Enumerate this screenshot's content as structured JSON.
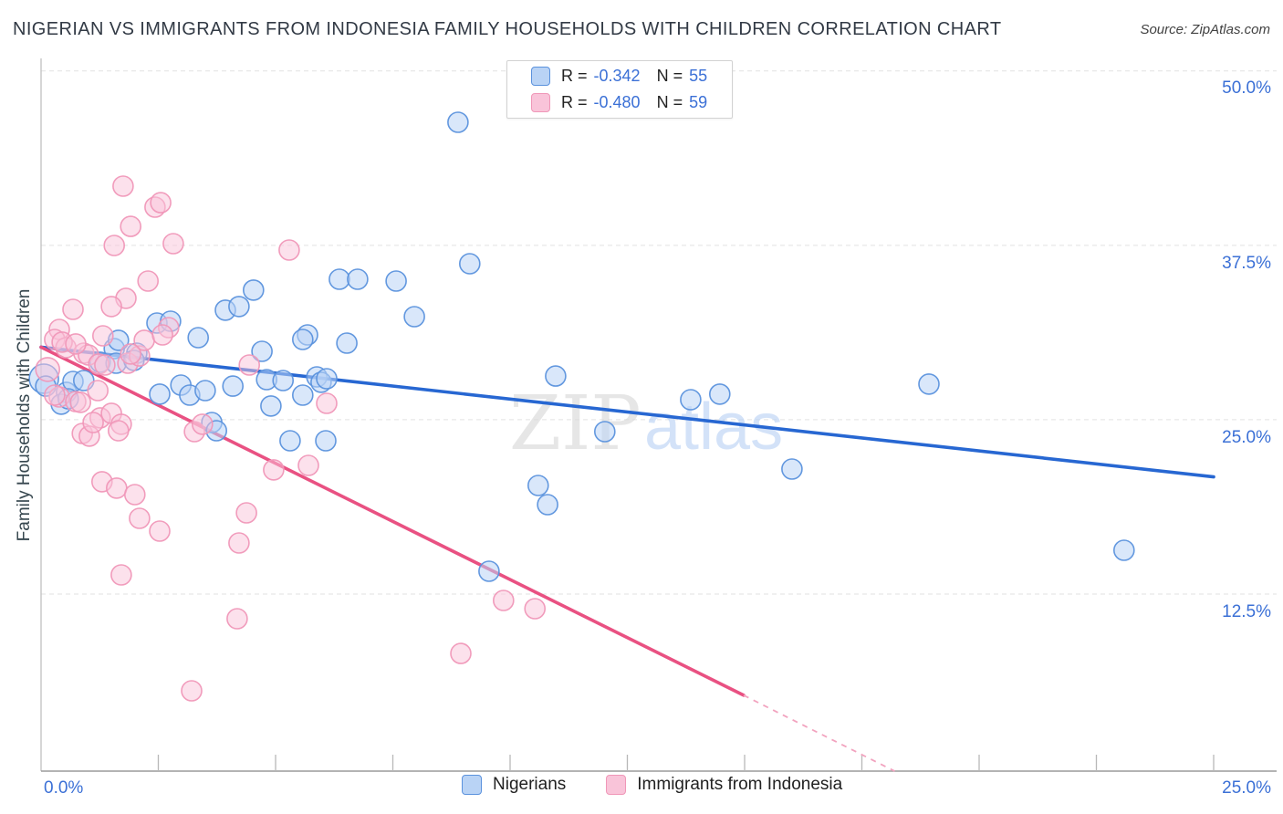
{
  "header": {
    "title": "NIGERIAN VS IMMIGRANTS FROM INDONESIA FAMILY HOUSEHOLDS WITH CHILDREN CORRELATION CHART",
    "source": "Source: ZipAtlas.com"
  },
  "legend_box": {
    "rows": [
      {
        "r_label": "R =",
        "r_value": "-0.342",
        "n_label": "N =",
        "n_value": "55"
      },
      {
        "r_label": "R =",
        "r_value": "-0.480",
        "n_label": "N =",
        "n_value": "59"
      }
    ]
  },
  "y_axis": {
    "title": "Family Households with Children",
    "tick_labels": [
      "50.0%",
      "37.5%",
      "25.0%",
      "12.5%"
    ]
  },
  "x_axis": {
    "min_label": "0.0%",
    "max_label": "25.0%"
  },
  "bottom_legend": {
    "items": [
      {
        "label": "Nigerians"
      },
      {
        "label": "Immigrants from Indonesia"
      }
    ]
  },
  "watermark": {
    "zip": "ZIP",
    "atlas": "atlas"
  },
  "colors": {
    "accent_text_blue": "#3b70d6",
    "blue_point_fill": "#b9d3f5",
    "blue_point_stroke": "#5b92dd",
    "pink_point_fill": "#f9c4d9",
    "pink_point_stroke": "#f097b8",
    "blue_trend": "#2767d2",
    "pink_trend": "#e95182",
    "pink_trend_dashed": "#f2a3bf",
    "gridline": "#e2e2e2",
    "x_axis_line": "#9b9b9b",
    "y_axis_line": "#c4c4c4"
  },
  "chart_data": {
    "type": "scatter",
    "title": "Nigerian vs Immigrants from Indonesia Family Households with Children",
    "xlabel": "",
    "ylabel": "Family Households with Children",
    "xlim": [
      0,
      25
    ],
    "ylim": [
      0,
      50
    ],
    "y_gridlines": [
      50,
      37.5,
      25,
      12.5
    ],
    "x_tick_step": 2.5,
    "grid": "dashed-horizontal",
    "legend_position": "bottom-center",
    "series": [
      {
        "name": "Nigerians",
        "R": -0.342,
        "N": 55,
        "trend": {
          "x0": 0,
          "y0": 30.2,
          "x1": 25,
          "y1": 20.9
        },
        "points": [
          [
            8.89,
            46.32
          ],
          [
            9.14,
            36.18
          ],
          [
            6.36,
            35.07
          ],
          [
            6.75,
            35.07
          ],
          [
            7.57,
            34.94
          ],
          [
            4.53,
            34.29
          ],
          [
            7.96,
            32.39
          ],
          [
            3.93,
            32.85
          ],
          [
            4.22,
            33.11
          ],
          [
            2.47,
            31.93
          ],
          [
            2.76,
            32.06
          ],
          [
            3.35,
            30.88
          ],
          [
            5.68,
            31.08
          ],
          [
            6.52,
            30.49
          ],
          [
            5.58,
            30.75
          ],
          [
            5.88,
            28.07
          ],
          [
            5.97,
            27.68
          ],
          [
            1.56,
            30.1
          ],
          [
            1.65,
            30.69
          ],
          [
            2.04,
            29.77
          ],
          [
            0.06,
            27.94,
            16
          ],
          [
            0.1,
            27.41
          ],
          [
            0.54,
            26.96
          ],
          [
            0.68,
            27.74
          ],
          [
            0.91,
            27.81
          ],
          [
            0.43,
            26.11
          ],
          [
            0.58,
            26.5
          ],
          [
            1.26,
            29.12
          ],
          [
            1.6,
            29.05
          ],
          [
            1.98,
            29.25
          ],
          [
            2.53,
            26.83
          ],
          [
            2.98,
            27.48
          ],
          [
            3.17,
            26.76
          ],
          [
            3.5,
            27.09
          ],
          [
            4.09,
            27.41
          ],
          [
            4.71,
            29.9
          ],
          [
            4.81,
            27.87
          ],
          [
            5.16,
            27.81
          ],
          [
            4.9,
            25.98
          ],
          [
            5.58,
            26.76
          ],
          [
            6.09,
            27.94
          ],
          [
            3.64,
            24.8
          ],
          [
            5.31,
            23.49
          ],
          [
            6.07,
            23.49
          ],
          [
            3.74,
            24.21
          ],
          [
            10.6,
            20.28
          ],
          [
            10.8,
            18.91
          ],
          [
            9.55,
            14.13
          ],
          [
            10.97,
            28.13
          ],
          [
            12.02,
            24.14
          ],
          [
            13.85,
            26.43
          ],
          [
            14.47,
            26.83
          ],
          [
            16.01,
            21.46
          ],
          [
            18.93,
            27.55
          ],
          [
            23.09,
            15.64
          ]
        ]
      },
      {
        "name": "Immigrants from Indonesia",
        "R": -0.48,
        "N": 59,
        "trend": {
          "x0": 0,
          "y0": 30.2,
          "x1": 14.98,
          "y1": 5.24,
          "dash_x1": 18.2,
          "dash_y1": -0.2
        },
        "points": [
          [
            1.75,
            41.74
          ],
          [
            2.43,
            40.24
          ],
          [
            2.55,
            40.56
          ],
          [
            1.91,
            38.86
          ],
          [
            1.56,
            37.49
          ],
          [
            2.82,
            37.62
          ],
          [
            5.29,
            37.16
          ],
          [
            2.28,
            34.94
          ],
          [
            1.81,
            33.7
          ],
          [
            1.5,
            33.11
          ],
          [
            0.68,
            32.91
          ],
          [
            2.72,
            31.6
          ],
          [
            0.39,
            31.47
          ],
          [
            0.29,
            30.75
          ],
          [
            0.53,
            30.16
          ],
          [
            1.32,
            31.01
          ],
          [
            0.91,
            29.77
          ],
          [
            1.01,
            29.64
          ],
          [
            1.23,
            28.99
          ],
          [
            1.85,
            29.05
          ],
          [
            2.1,
            29.57
          ],
          [
            0.45,
            30.56
          ],
          [
            0.74,
            30.43
          ],
          [
            2.2,
            30.69
          ],
          [
            2.59,
            31.08
          ],
          [
            1.91,
            29.71
          ],
          [
            1.36,
            28.92
          ],
          [
            0.14,
            28.6,
            13
          ],
          [
            0.39,
            26.63
          ],
          [
            0.74,
            26.3
          ],
          [
            1.21,
            27.09
          ],
          [
            0.84,
            26.24
          ],
          [
            0.29,
            26.76
          ],
          [
            1.26,
            25.13
          ],
          [
            1.5,
            25.46
          ],
          [
            1.71,
            24.67
          ],
          [
            0.88,
            24.01
          ],
          [
            1.03,
            23.82
          ],
          [
            1.11,
            24.8
          ],
          [
            1.65,
            24.21
          ],
          [
            3.27,
            24.14
          ],
          [
            3.44,
            24.67
          ],
          [
            6.09,
            26.17
          ],
          [
            4.44,
            28.92
          ],
          [
            4.96,
            21.4
          ],
          [
            5.7,
            21.72
          ],
          [
            1.3,
            20.55
          ],
          [
            1.61,
            20.09
          ],
          [
            2.0,
            19.63
          ],
          [
            2.1,
            17.93
          ],
          [
            2.53,
            17.01
          ],
          [
            4.38,
            18.32
          ],
          [
            4.22,
            16.16
          ],
          [
            1.71,
            13.87
          ],
          [
            4.18,
            10.73
          ],
          [
            3.21,
            5.56
          ],
          [
            8.95,
            8.24
          ],
          [
            9.86,
            12.04
          ],
          [
            10.53,
            11.45
          ]
        ]
      }
    ]
  }
}
